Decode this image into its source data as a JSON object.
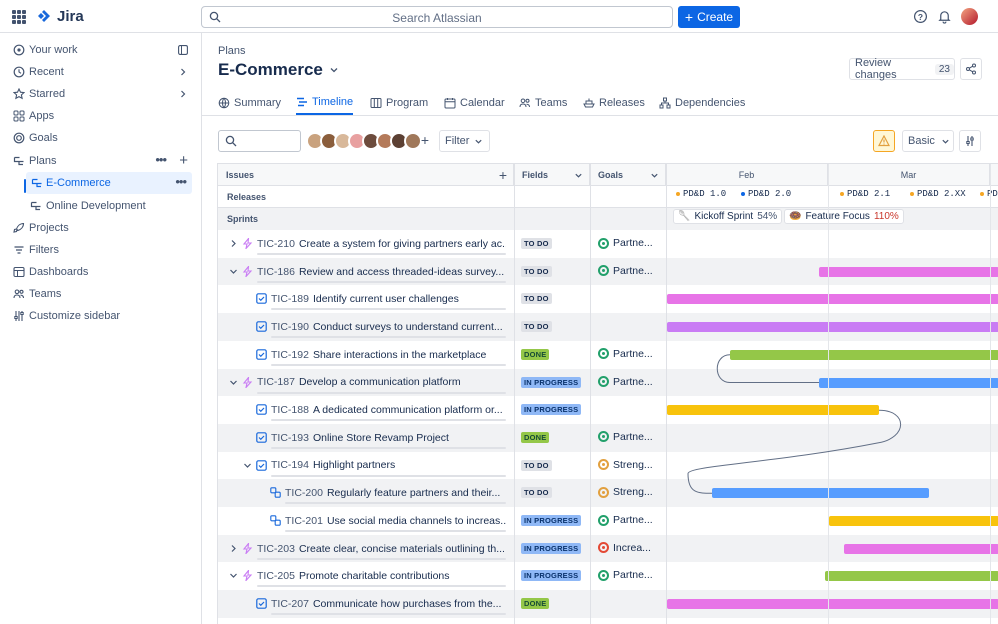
{
  "app": {
    "name": "Jira"
  },
  "topbar": {
    "search_placeholder": "Search Atlassian",
    "create_label": "Create"
  },
  "sidebar": {
    "items": [
      {
        "label": "Your work",
        "icon": "briefcase-icon"
      },
      {
        "label": "Recent",
        "icon": "clock-icon"
      },
      {
        "label": "Starred",
        "icon": "star-icon"
      },
      {
        "label": "Apps",
        "icon": "apps-icon"
      },
      {
        "label": "Goals",
        "icon": "target-icon"
      },
      {
        "label": "Plans",
        "icon": "plans-icon"
      },
      {
        "label": "E-Commerce",
        "icon": "plan-icon"
      },
      {
        "label": "Online Development",
        "icon": "plan-icon"
      },
      {
        "label": "Projects",
        "icon": "rocket-icon"
      },
      {
        "label": "Filters",
        "icon": "filter-icon"
      },
      {
        "label": "Dashboards",
        "icon": "dashboard-icon"
      },
      {
        "label": "Teams",
        "icon": "people-icon"
      },
      {
        "label": "Customize sidebar",
        "icon": "sliders-icon"
      }
    ]
  },
  "page": {
    "breadcrumb": "Plans",
    "title": "E-Commerce",
    "review_label": "Review changes",
    "review_count": "23",
    "tabs": [
      "Summary",
      "Timeline",
      "Program",
      "Calendar",
      "Teams",
      "Releases",
      "Dependencies"
    ],
    "active_tab": "Timeline"
  },
  "toolbar": {
    "filter_label": "Filter",
    "view_label": "Basic"
  },
  "table": {
    "headers": {
      "issues": "Issues",
      "fields": "Fields",
      "goals": "Goals"
    },
    "months": [
      "Feb",
      "Mar"
    ],
    "releases_label": "Releases",
    "sprints_label": "Sprints",
    "releases": [
      {
        "name": "PD&D 1.0",
        "color": "#f5a623"
      },
      {
        "name": "PD&D 2.0",
        "color": "#0c66e4"
      },
      {
        "name": "PD&D 2.1",
        "color": "#f5a623"
      },
      {
        "name": "PD&D 2.XX",
        "color": "#f5a623"
      },
      {
        "name": "PD&",
        "color": "#f5a623"
      }
    ],
    "sprints": [
      {
        "name": "Kickoff Sprint",
        "pct": "54%",
        "emoji": "🥄"
      },
      {
        "name": "Feature Focus",
        "pct": "110%",
        "emoji": "🍩"
      }
    ],
    "rows": [
      {
        "key": "TIC-210",
        "title": "Create a system for giving partners early ac...",
        "status": "TO DO",
        "goal": "Partne...",
        "goal_color": "#22a06b"
      },
      {
        "key": "TIC-186",
        "title": "Review and access threaded-ideas survey...",
        "status": "TO DO",
        "goal": "Partne...",
        "goal_color": "#22a06b"
      },
      {
        "key": "TIC-189",
        "title": "Identify current user challenges",
        "status": "TO DO",
        "goal": "",
        "goal_color": ""
      },
      {
        "key": "TIC-190",
        "title": "Conduct surveys to understand current...",
        "status": "TO DO",
        "goal": "",
        "goal_color": ""
      },
      {
        "key": "TIC-192",
        "title": "Share interactions in the marketplace",
        "status": "DONE",
        "goal": "Partne...",
        "goal_color": "#22a06b"
      },
      {
        "key": "TIC-187",
        "title": "Develop a communication platform",
        "status": "IN PROGRESS",
        "goal": "Partne...",
        "goal_color": "#22a06b"
      },
      {
        "key": "TIC-188",
        "title": "A dedicated communication platform or...",
        "status": "IN PROGRESS",
        "goal": "",
        "goal_color": ""
      },
      {
        "key": "TIC-193",
        "title": "Online Store Revamp Project",
        "status": "DONE",
        "goal": "Partne...",
        "goal_color": "#22a06b"
      },
      {
        "key": "TIC-194",
        "title": "Highlight partners",
        "status": "TO DO",
        "goal": "Streng...",
        "goal_color": "#e2a03f"
      },
      {
        "key": "TIC-200",
        "title": "Regularly feature partners and their...",
        "status": "TO DO",
        "goal": "Streng...",
        "goal_color": "#e2a03f"
      },
      {
        "key": "TIC-201",
        "title": "Use social media channels to increas...",
        "status": "IN PROGRESS",
        "goal": "Partne...",
        "goal_color": "#22a06b"
      },
      {
        "key": "TIC-203",
        "title": "Create clear, concise materials outlining th...",
        "status": "IN PROGRESS",
        "goal": "Increa...",
        "goal_color": "#e34935"
      },
      {
        "key": "TIC-205",
        "title": "Promote charitable contributions",
        "status": "IN PROGRESS",
        "goal": "Partne...",
        "goal_color": "#22a06b"
      },
      {
        "key": "TIC-207",
        "title": "Communicate how purchases from the...",
        "status": "DONE",
        "goal": "",
        "goal_color": ""
      }
    ]
  },
  "colors": {
    "purple": "#da62ac",
    "pink": "#e774e7",
    "green": "#94c748",
    "blue": "#579dff",
    "yellow": "#f8c30c",
    "accent": "#0c66e4"
  }
}
